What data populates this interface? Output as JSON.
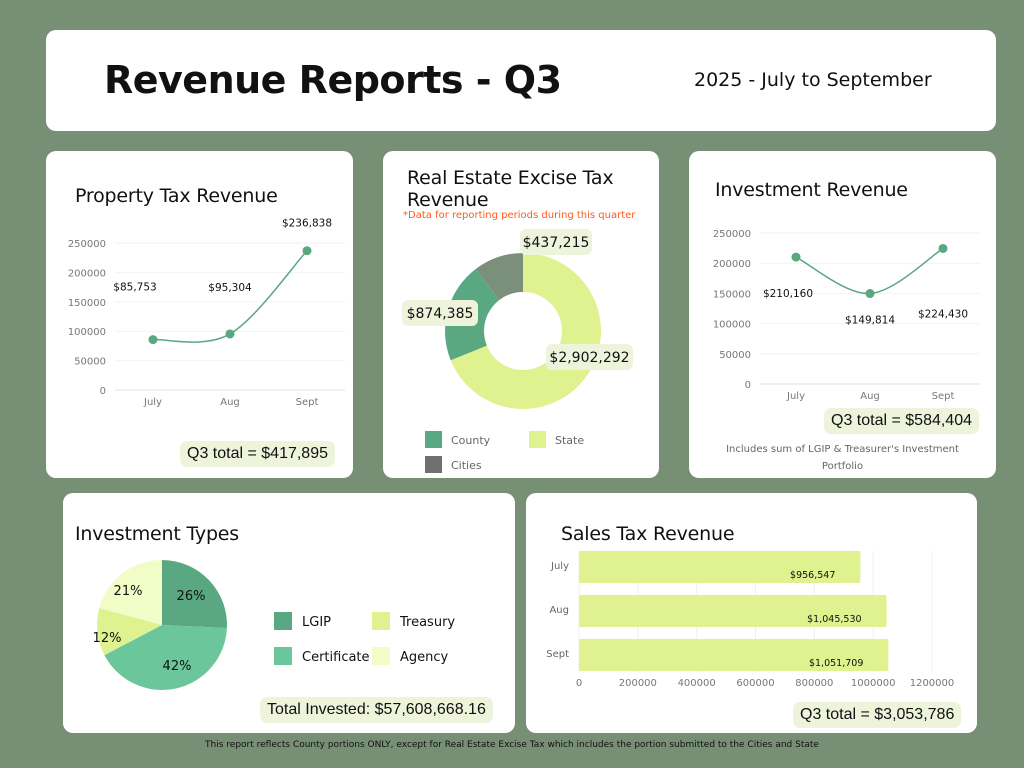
{
  "header": {
    "title": "Revenue Reports - Q3",
    "subtitle": "2025 - July to September"
  },
  "colors": {
    "background": "#778f75",
    "line": "#5aa882",
    "county": "#5aa882",
    "state": "#dff28f",
    "cities": "#6f6f6f",
    "lgip": "#5aa882",
    "certificate": "#6cc69b",
    "treasury": "#dff28f",
    "agency": "#f1fcc6",
    "note": "#ff5a1f",
    "pill": "#eef4dc"
  },
  "property_tax": {
    "total": "Q3 total = $417,895"
  },
  "reet": {
    "note": "*Data for reporting periods during this quarter"
  },
  "investment_revenue": {
    "total": "Q3 total = $584,404",
    "footnote": "Includes sum of LGIP & Treasurer's Investment Portfolio"
  },
  "investment_types": {
    "total": "Total Invested: $57,608,668.16"
  },
  "sales_tax": {
    "total": "Q3 total = $3,053,786"
  },
  "footer": "This report reflects County portions ONLY, except for Real Estate Excise Tax which includes the portion submitted to the Cities and State",
  "chart_data": [
    {
      "type": "line",
      "title": "Property Tax Revenue",
      "categories": [
        "July",
        "Aug",
        "Sept"
      ],
      "values": [
        85753,
        95304,
        236838
      ],
      "labels": [
        "$85,753",
        "$95,304",
        "$236,838"
      ],
      "ylim": [
        0,
        250000
      ],
      "yticks": [
        "0",
        "50000",
        "100000",
        "150000",
        "200000",
        "250000"
      ],
      "grid": true
    },
    {
      "type": "pie",
      "title": "Real Estate Excise Tax Revenue",
      "donut": true,
      "categories": [
        "State",
        "County",
        "Cities"
      ],
      "values": [
        2902292,
        874385,
        437215
      ],
      "labels": [
        "$2,902,292",
        "$874,385",
        "$437,215"
      ],
      "legend": [
        "County",
        "State",
        "Cities"
      ],
      "legend_position": "bottom"
    },
    {
      "type": "line",
      "title": "Investment Revenue",
      "categories": [
        "July",
        "Aug",
        "Sept"
      ],
      "values": [
        210160,
        149814,
        224430
      ],
      "labels": [
        "$210,160",
        "$149,814",
        "$224,430"
      ],
      "ylim": [
        0,
        250000
      ],
      "yticks": [
        "0",
        "50000",
        "100000",
        "150000",
        "200000",
        "250000"
      ],
      "grid": true
    },
    {
      "type": "pie",
      "title": "Investment Types",
      "categories": [
        "LGIP",
        "Certificate",
        "Treasury",
        "Agency"
      ],
      "values": [
        26,
        42,
        12,
        21
      ],
      "labels": [
        "26%",
        "42%",
        "12%",
        "21%"
      ],
      "legend": [
        "LGIP",
        "Treasury",
        "Certificate",
        "Agency"
      ],
      "legend_position": "right"
    },
    {
      "type": "bar",
      "orientation": "horizontal",
      "title": "Sales Tax Revenue",
      "categories": [
        "July",
        "Aug",
        "Sept"
      ],
      "values": [
        956547,
        1045530,
        1051709
      ],
      "labels": [
        "$956,547",
        "$1,045,530",
        "$1,051,709"
      ],
      "xlim": [
        0,
        1200000
      ],
      "xticks": [
        "0",
        "200000",
        "400000",
        "600000",
        "800000",
        "1000000",
        "1200000"
      ],
      "grid": true
    }
  ]
}
